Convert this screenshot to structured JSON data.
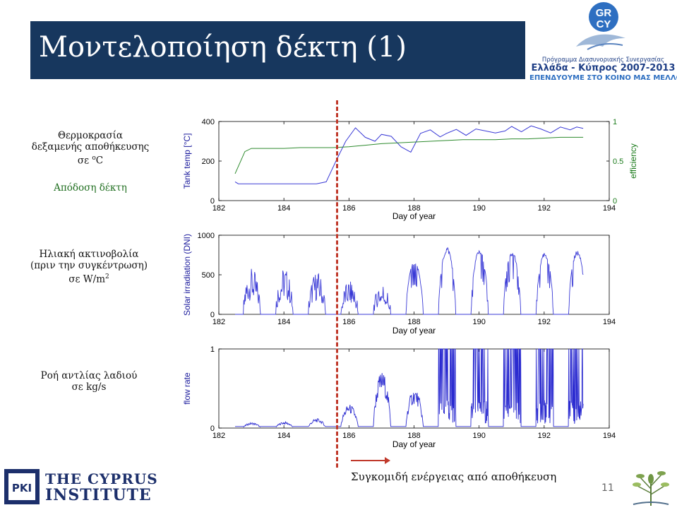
{
  "title": "Μοντελοποίηση δέκτη (1)",
  "logo_gc": {
    "badge_top": "GR",
    "badge_bottom": "CY",
    "programme": "Πρόγραμμα Διασυνοριακής Συνεργασίας",
    "main": "Ελλάδα - Κύπρος 2007-2013",
    "motto": "ΕΠΕΝΔΥΟΥΜΕ ΣΤΟ ΚΟΙΝΟ ΜΑΣ ΜΕΛΛΟΝ"
  },
  "labels": {
    "temp": [
      "Θερμοκρασία",
      "δεξαμενής αποθήκευσης",
      "σε ",
      "o",
      "C"
    ],
    "efficiency": "Απόδοση δέκτη",
    "irradiation": [
      "Ηλιακή ακτινοβολία",
      "(πριν την συγκέντρωση)",
      "σε W/m",
      "2"
    ],
    "flow": [
      "Ροή αντλίας λαδιού",
      "σε kg/s"
    ]
  },
  "bottom_caption": "Συγκομιδή ενέργειας από αποθήκευση",
  "page_number": "11",
  "cyi": {
    "line1": "THE CYPRUS",
    "line2": "INSTITUTE",
    "mark": "PKI"
  },
  "chart_data": [
    {
      "type": "line",
      "ylabel": "Tank temp [°C]",
      "y2label": "efficiency",
      "xlabel": "Day of year",
      "xlim": [
        182,
        194
      ],
      "ylim": [
        0,
        400
      ],
      "y2lim": [
        0,
        1
      ],
      "xticks": [
        182,
        184,
        186,
        188,
        190,
        192,
        194
      ],
      "yticks": [
        0,
        200,
        400
      ],
      "y2ticks": [
        0,
        0.5,
        1
      ],
      "y2ticklabels": [
        "0",
        "0.5",
        "1"
      ],
      "series": [
        {
          "color": "#3a3ad6",
          "axis": "left",
          "x": [
            182.5,
            182.6,
            183,
            183.5,
            184,
            184.5,
            185,
            185.3,
            185.6,
            185.9,
            186.2,
            186.5,
            186.8,
            187,
            187.3,
            187.6,
            187.9,
            188.2,
            188.5,
            188.8,
            189.0,
            189.3,
            189.6,
            189.9,
            190.2,
            190.5,
            190.8,
            191.0,
            191.3,
            191.6,
            191.9,
            192.2,
            192.5,
            192.8,
            193.0,
            193.2
          ],
          "y": [
            95,
            85,
            85,
            85,
            85,
            85,
            85,
            95,
            200,
            300,
            368,
            320,
            300,
            335,
            325,
            272,
            245,
            340,
            358,
            322,
            340,
            360,
            330,
            362,
            352,
            342,
            352,
            375,
            348,
            378,
            362,
            342,
            372,
            358,
            372,
            365
          ]
        },
        {
          "color": "#2e8b2e",
          "axis": "right",
          "x": [
            182.5,
            182.8,
            183.0,
            183.5,
            184,
            184.5,
            185,
            185.5,
            186,
            186.5,
            187,
            187.5,
            188,
            188.5,
            189,
            189.5,
            190,
            190.5,
            191,
            191.5,
            192,
            192.5,
            193.2
          ],
          "y": [
            0.34,
            0.62,
            0.66,
            0.66,
            0.66,
            0.67,
            0.67,
            0.67,
            0.68,
            0.7,
            0.72,
            0.73,
            0.74,
            0.75,
            0.76,
            0.77,
            0.77,
            0.77,
            0.78,
            0.78,
            0.79,
            0.8,
            0.8
          ]
        }
      ]
    },
    {
      "type": "line",
      "ylabel": "Solar irradiation (DNI)",
      "xlabel": "Day of year",
      "xlim": [
        182,
        194
      ],
      "ylim": [
        0,
        1000
      ],
      "xticks": [
        182,
        184,
        186,
        188,
        190,
        192,
        194
      ],
      "yticks": [
        0,
        500,
        1000
      ],
      "series": [
        {
          "color": "#3a3ad6",
          "day_peaks": [
            {
              "day": 182,
              "peak": 520
            },
            {
              "day": 183,
              "peak": 530
            },
            {
              "day": 184,
              "peak": 480
            },
            {
              "day": 185,
              "peak": 360
            },
            {
              "day": 186,
              "peak": 330
            },
            {
              "day": 187,
              "peak": 680
            },
            {
              "day": 188,
              "peak": 860
            },
            {
              "day": 189,
              "peak": 840
            },
            {
              "day": 190,
              "peak": 820
            },
            {
              "day": 191,
              "peak": 800
            },
            {
              "day": 192,
              "peak": 820
            },
            {
              "day": 193,
              "peak": 680
            }
          ]
        }
      ]
    },
    {
      "type": "line",
      "ylabel": "flow rate",
      "xlabel": "Day of year",
      "xlim": [
        182,
        194
      ],
      "ylim": [
        0,
        1
      ],
      "xticks": [
        182,
        184,
        186,
        188,
        190,
        192,
        194
      ],
      "yticks": [
        0,
        1
      ],
      "series": [
        {
          "color": "#2b2bd0",
          "day_peaks": [
            {
              "day": 182,
              "peak": 0.07
            },
            {
              "day": 183,
              "peak": 0.08
            },
            {
              "day": 184,
              "peak": 0.12
            },
            {
              "day": 185,
              "peak": 0.3
            },
            {
              "day": 186,
              "peak": 0.72
            },
            {
              "day": 187,
              "peak": 0.5
            },
            {
              "day": 188,
              "peak": 1.0
            },
            {
              "day": 189,
              "peak": 1.0
            },
            {
              "day": 190,
              "peak": 1.0
            },
            {
              "day": 191,
              "peak": 1.0
            },
            {
              "day": 192,
              "peak": 1.0
            },
            {
              "day": 193,
              "peak": 0.75
            }
          ]
        }
      ]
    }
  ]
}
